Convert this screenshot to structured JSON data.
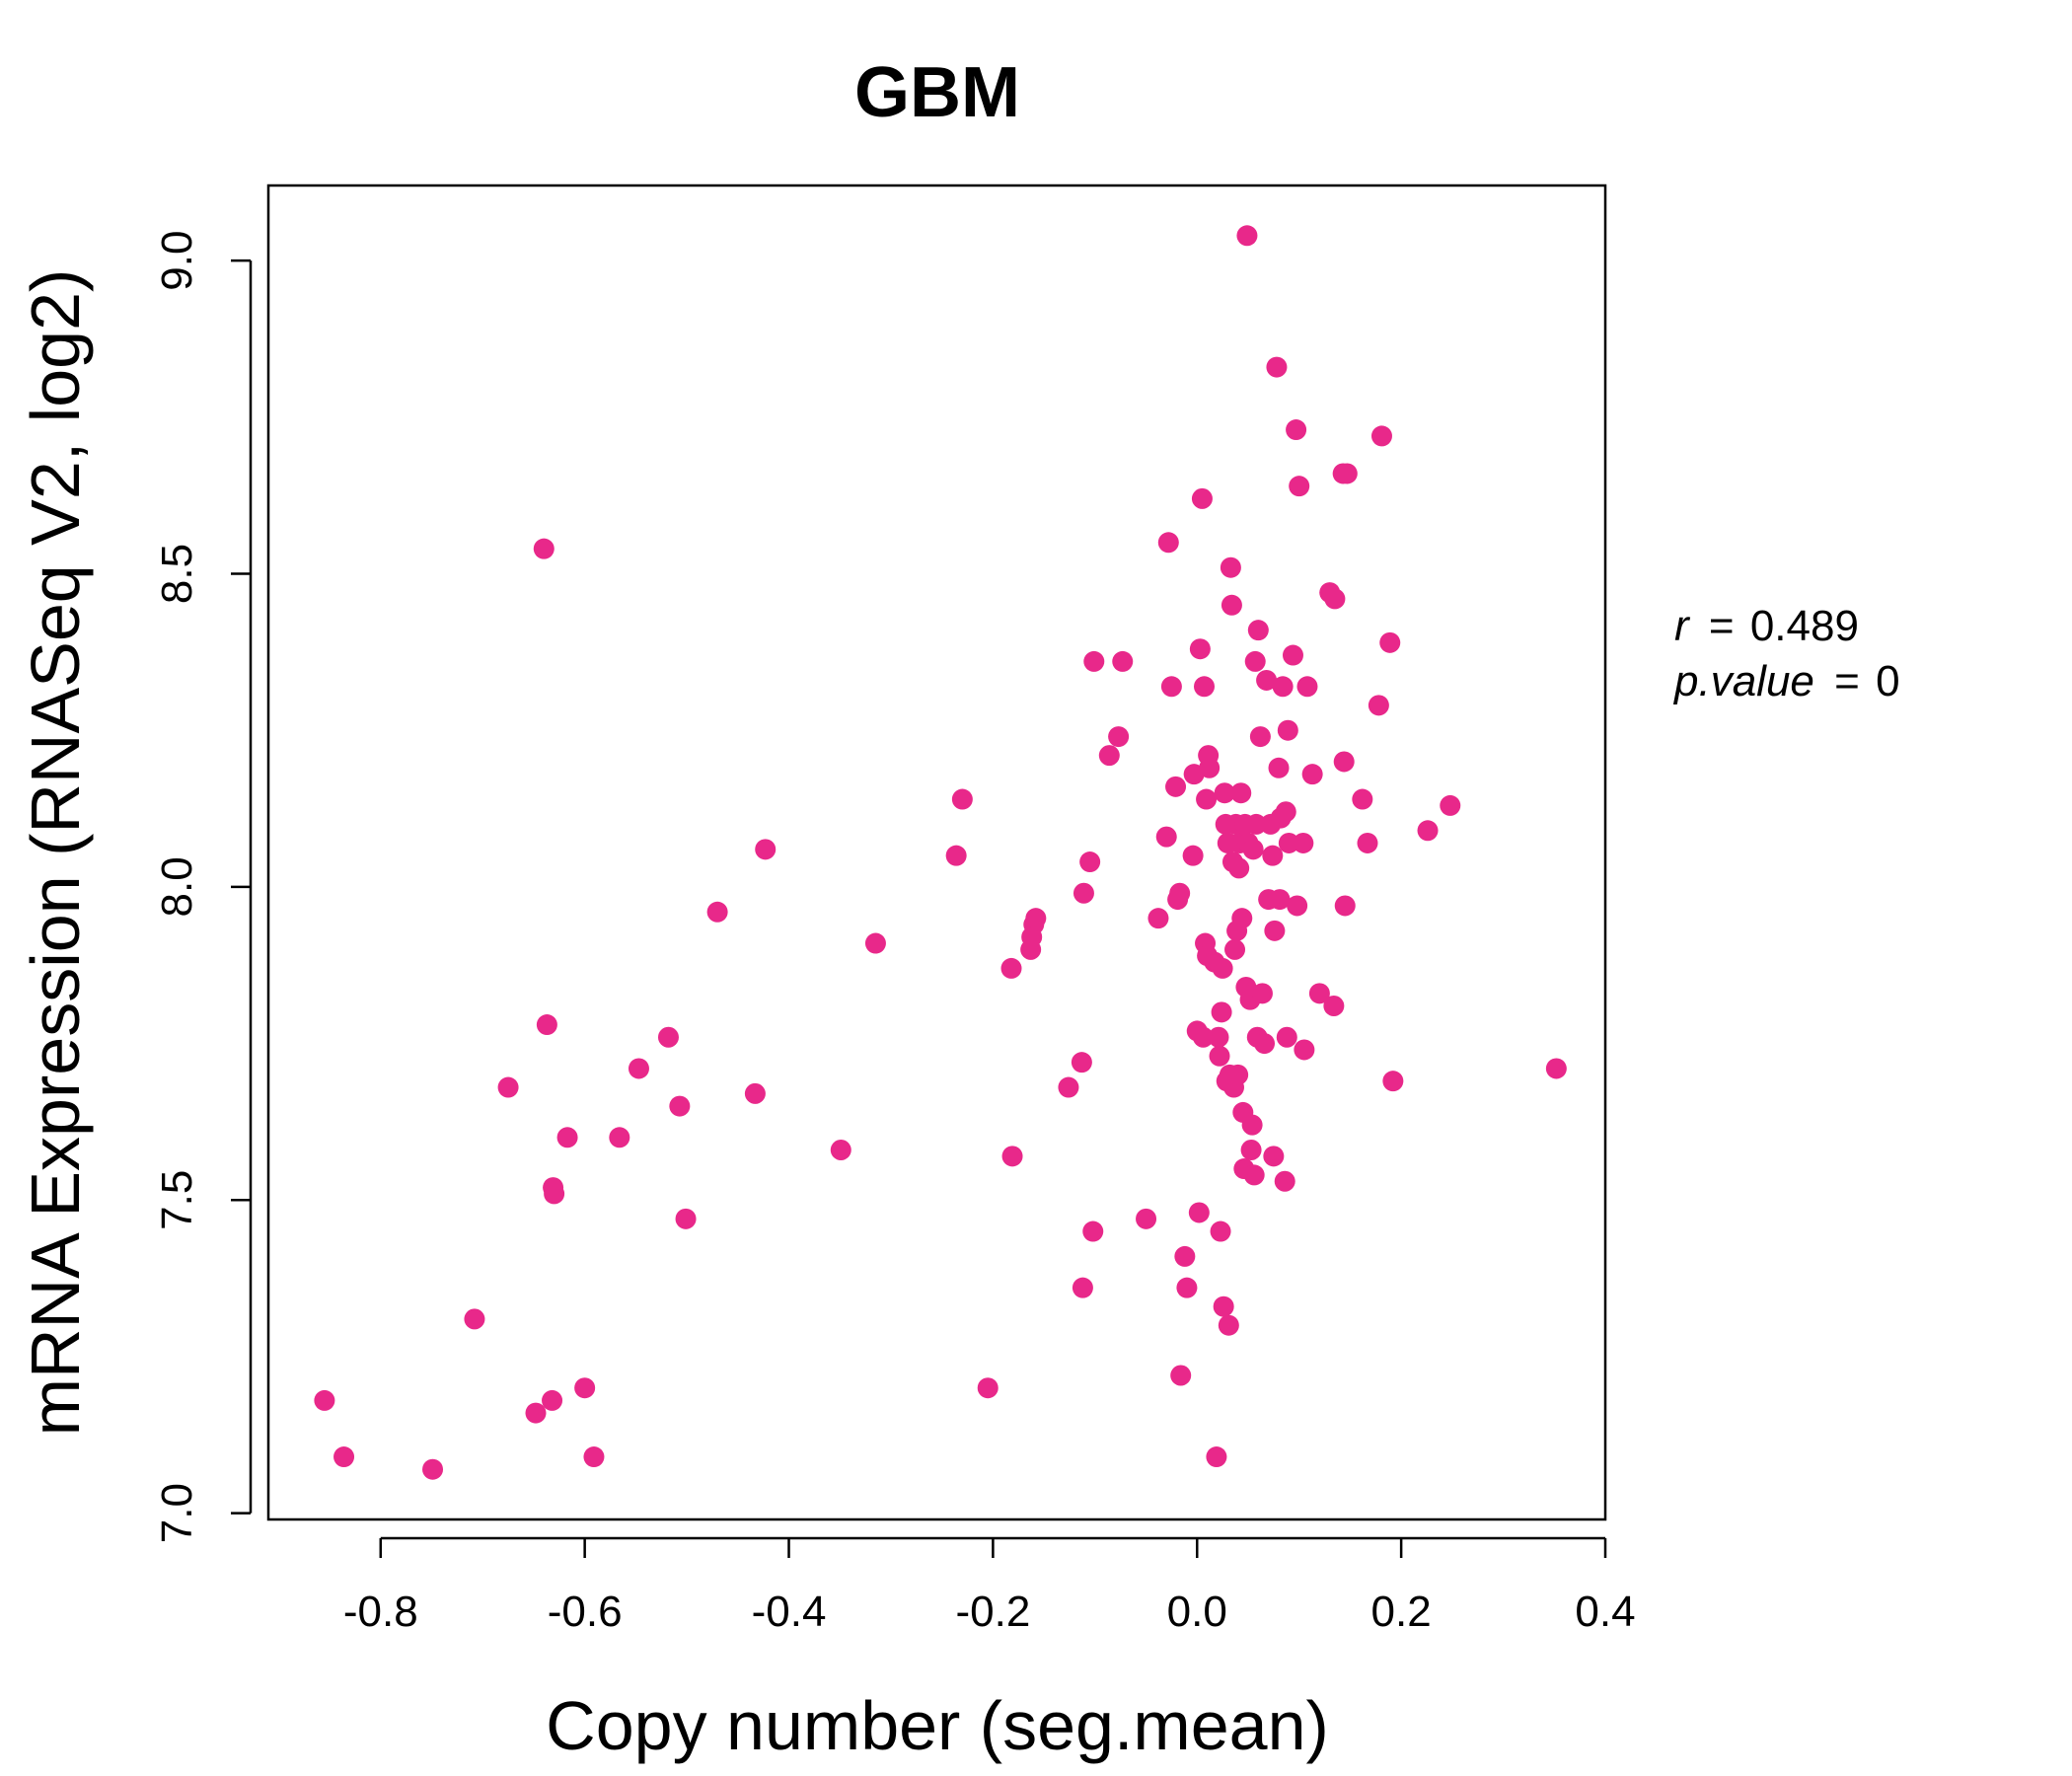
{
  "chart_data": {
    "type": "scatter",
    "title": "GBM",
    "title_color": "#E8288A",
    "point_color": "#E8288A",
    "xlabel": "Copy number (seg.mean)",
    "ylabel": "mRNA Expression (RNASeq V2, log2)",
    "xlim": [
      -0.91,
      0.4
    ],
    "ylim": [
      6.99,
      9.12
    ],
    "xticks": [
      -0.8,
      -0.6,
      -0.4,
      -0.2,
      0.0,
      0.2,
      0.4
    ],
    "xtick_labels": [
      "-0.8",
      "-0.6",
      "-0.4",
      "-0.2",
      "0.0",
      "0.2",
      "0.4"
    ],
    "yticks": [
      7.0,
      7.5,
      8.0,
      8.5,
      9.0
    ],
    "ytick_labels": [
      "7.0",
      "7.5",
      "8.0",
      "8.5",
      "9.0"
    ],
    "grid": false,
    "annotation": {
      "r_label": "r",
      "r_value": "0.489",
      "p_label": "p.value",
      "p_value": "0"
    },
    "points": [
      [
        -0.855,
        7.18
      ],
      [
        -0.836,
        7.09
      ],
      [
        -0.749,
        7.07
      ],
      [
        -0.708,
        7.31
      ],
      [
        -0.648,
        7.16
      ],
      [
        -0.632,
        7.18
      ],
      [
        -0.6,
        7.2
      ],
      [
        -0.591,
        7.09
      ],
      [
        -0.64,
        8.54
      ],
      [
        -0.637,
        7.78
      ],
      [
        -0.675,
        7.68
      ],
      [
        -0.617,
        7.6
      ],
      [
        -0.631,
        7.52
      ],
      [
        -0.63,
        7.51
      ],
      [
        -0.566,
        7.6
      ],
      [
        -0.547,
        7.71
      ],
      [
        -0.518,
        7.76
      ],
      [
        -0.507,
        7.65
      ],
      [
        -0.501,
        7.47
      ],
      [
        -0.47,
        7.96
      ],
      [
        -0.433,
        7.67
      ],
      [
        -0.423,
        8.06
      ],
      [
        -0.349,
        7.58
      ],
      [
        -0.315,
        7.91
      ],
      [
        -0.236,
        8.05
      ],
      [
        -0.23,
        8.14
      ],
      [
        -0.205,
        7.2
      ],
      [
        -0.182,
        7.87
      ],
      [
        -0.181,
        7.57
      ],
      [
        -0.163,
        7.9
      ],
      [
        -0.162,
        7.92
      ],
      [
        -0.16,
        7.94
      ],
      [
        -0.158,
        7.95
      ],
      [
        -0.126,
        7.68
      ],
      [
        -0.113,
        7.72
      ],
      [
        -0.112,
        7.36
      ],
      [
        -0.111,
        7.99
      ],
      [
        -0.105,
        8.04
      ],
      [
        -0.102,
        7.45
      ],
      [
        -0.101,
        8.36
      ],
      [
        -0.086,
        8.21
      ],
      [
        -0.077,
        8.24
      ],
      [
        -0.073,
        8.36
      ],
      [
        -0.05,
        7.47
      ],
      [
        -0.038,
        7.95
      ],
      [
        -0.03,
        8.08
      ],
      [
        -0.028,
        8.55
      ],
      [
        -0.025,
        8.32
      ],
      [
        -0.021,
        8.16
      ],
      [
        -0.019,
        7.98
      ],
      [
        -0.017,
        7.99
      ],
      [
        -0.016,
        7.22
      ],
      [
        -0.012,
        7.41
      ],
      [
        -0.01,
        7.36
      ],
      [
        -0.004,
        8.05
      ],
      [
        -0.003,
        8.18
      ],
      [
        0.0,
        7.77
      ],
      [
        0.002,
        7.48
      ],
      [
        0.003,
        8.38
      ],
      [
        0.005,
        8.62
      ],
      [
        0.006,
        7.76
      ],
      [
        0.007,
        8.32
      ],
      [
        0.008,
        7.91
      ],
      [
        0.009,
        8.14
      ],
      [
        0.01,
        7.89
      ],
      [
        0.011,
        8.21
      ],
      [
        0.012,
        8.19
      ],
      [
        0.017,
        7.88
      ],
      [
        0.019,
        7.09
      ],
      [
        0.021,
        7.76
      ],
      [
        0.022,
        7.73
      ],
      [
        0.023,
        7.45
      ],
      [
        0.024,
        7.8
      ],
      [
        0.025,
        7.87
      ],
      [
        0.026,
        7.33
      ],
      [
        0.027,
        8.15
      ],
      [
        0.028,
        8.1
      ],
      [
        0.029,
        7.69
      ],
      [
        0.03,
        8.07
      ],
      [
        0.031,
        7.3
      ],
      [
        0.032,
        7.7
      ],
      [
        0.033,
        8.51
      ],
      [
        0.034,
        8.45
      ],
      [
        0.035,
        8.04
      ],
      [
        0.036,
        7.68
      ],
      [
        0.037,
        7.9
      ],
      [
        0.038,
        8.1
      ],
      [
        0.039,
        7.93
      ],
      [
        0.04,
        7.7
      ],
      [
        0.041,
        8.03
      ],
      [
        0.042,
        8.07
      ],
      [
        0.043,
        8.15
      ],
      [
        0.044,
        7.95
      ],
      [
        0.045,
        7.64
      ],
      [
        0.046,
        7.55
      ],
      [
        0.047,
        8.1
      ],
      [
        0.048,
        7.84
      ],
      [
        0.049,
        9.04
      ],
      [
        0.05,
        8.07
      ],
      [
        0.052,
        7.82
      ],
      [
        0.053,
        7.58
      ],
      [
        0.054,
        7.62
      ],
      [
        0.055,
        8.06
      ],
      [
        0.056,
        7.54
      ],
      [
        0.057,
        8.36
      ],
      [
        0.058,
        8.1
      ],
      [
        0.059,
        7.76
      ],
      [
        0.06,
        8.41
      ],
      [
        0.062,
        8.24
      ],
      [
        0.064,
        7.83
      ],
      [
        0.066,
        7.75
      ],
      [
        0.068,
        8.33
      ],
      [
        0.07,
        7.98
      ],
      [
        0.072,
        8.1
      ],
      [
        0.074,
        8.05
      ],
      [
        0.075,
        7.57
      ],
      [
        0.076,
        7.93
      ],
      [
        0.078,
        8.83
      ],
      [
        0.08,
        8.19
      ],
      [
        0.081,
        7.98
      ],
      [
        0.082,
        8.11
      ],
      [
        0.084,
        8.32
      ],
      [
        0.086,
        7.53
      ],
      [
        0.087,
        8.12
      ],
      [
        0.088,
        7.76
      ],
      [
        0.089,
        8.25
      ],
      [
        0.09,
        8.07
      ],
      [
        0.094,
        8.37
      ],
      [
        0.097,
        8.73
      ],
      [
        0.098,
        7.97
      ],
      [
        0.1,
        8.64
      ],
      [
        0.104,
        8.07
      ],
      [
        0.105,
        7.74
      ],
      [
        0.108,
        8.32
      ],
      [
        0.113,
        8.18
      ],
      [
        0.12,
        7.83
      ],
      [
        0.13,
        8.47
      ],
      [
        0.134,
        7.81
      ],
      [
        0.135,
        8.46
      ],
      [
        0.143,
        8.66
      ],
      [
        0.144,
        8.2
      ],
      [
        0.145,
        7.97
      ],
      [
        0.147,
        8.66
      ],
      [
        0.162,
        8.14
      ],
      [
        0.167,
        8.07
      ],
      [
        0.178,
        8.29
      ],
      [
        0.181,
        8.72
      ],
      [
        0.189,
        8.39
      ],
      [
        0.192,
        7.69
      ],
      [
        0.226,
        8.09
      ],
      [
        0.248,
        8.13
      ],
      [
        0.352,
        7.71
      ]
    ]
  }
}
